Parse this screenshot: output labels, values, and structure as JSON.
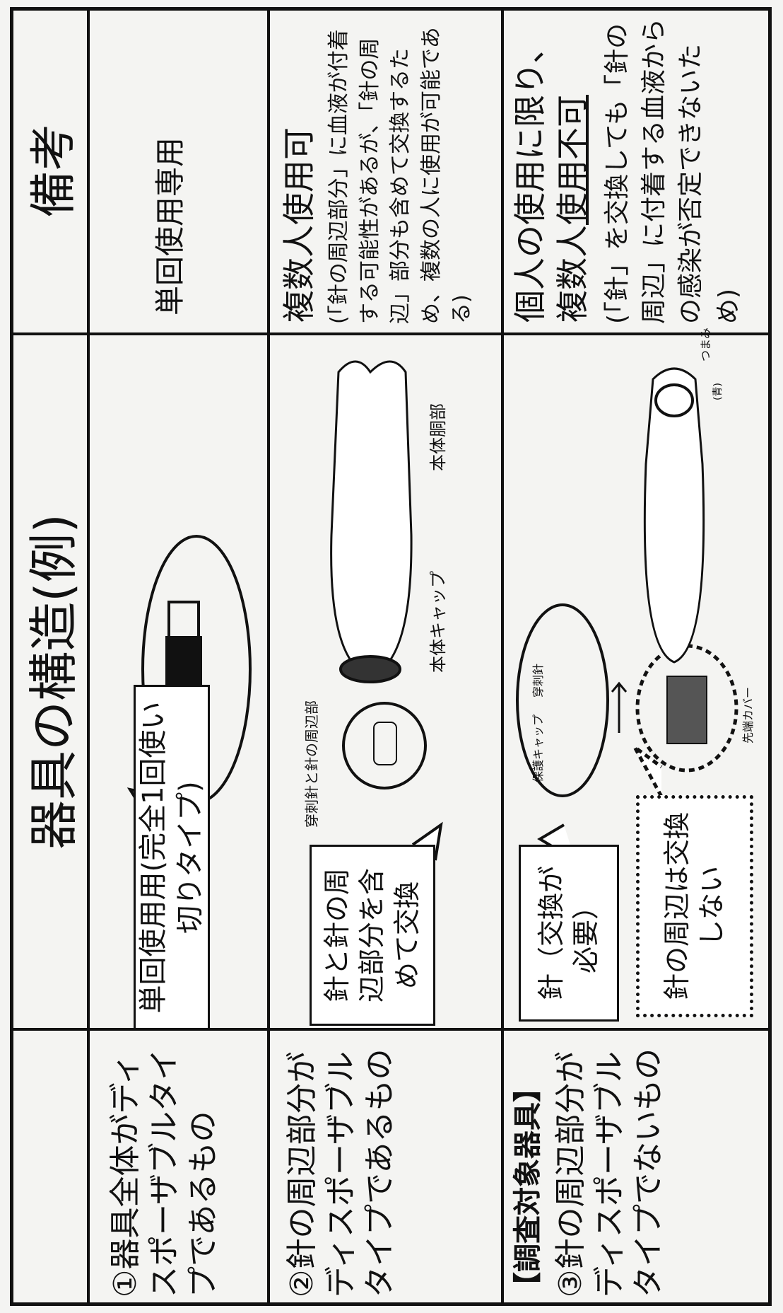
{
  "header": {
    "title": "器具の構造(例)",
    "remarks": "備考"
  },
  "rows": [
    {
      "description": "①器具全体がディスポーザブルタイプであるもの",
      "callouts": [
        "単回使用用(完全1回使い切りタイプ)"
      ],
      "remarks": {
        "heading": "単回使用専用"
      }
    },
    {
      "description": "②針の周辺部分がディスポーザブルタイプであるもの",
      "callouts": [
        "針と針の周辺部分を含めて交換"
      ],
      "labels": [
        "穿刺針と針の周辺部",
        "本体キャップ",
        "本体胴部"
      ],
      "remarks": {
        "heading": "複数人使用可",
        "note": "(「針の周辺部分」に血液が付着する可能性があるが、「針の周辺」部分も含めて交換するため、複数の人に使用が可能である)"
      }
    },
    {
      "tag": "【調査対象器具】",
      "description": "③針の周辺部分がディスポーザブルタイプでないもの",
      "callouts": [
        "針（交換が必要）",
        "針の周辺は交換しない"
      ],
      "labels": [
        "保護キャップ",
        "穿刺針",
        "先端カバー",
        "つまみ",
        "(青)"
      ],
      "remarks": {
        "heading": "個人の使用に限り、",
        "heading2a": "複数人",
        "heading2b": "使用不可",
        "note": "(「針」を交換しても「針の周辺」に付着する血液からの感染が否定できないため)"
      }
    }
  ]
}
